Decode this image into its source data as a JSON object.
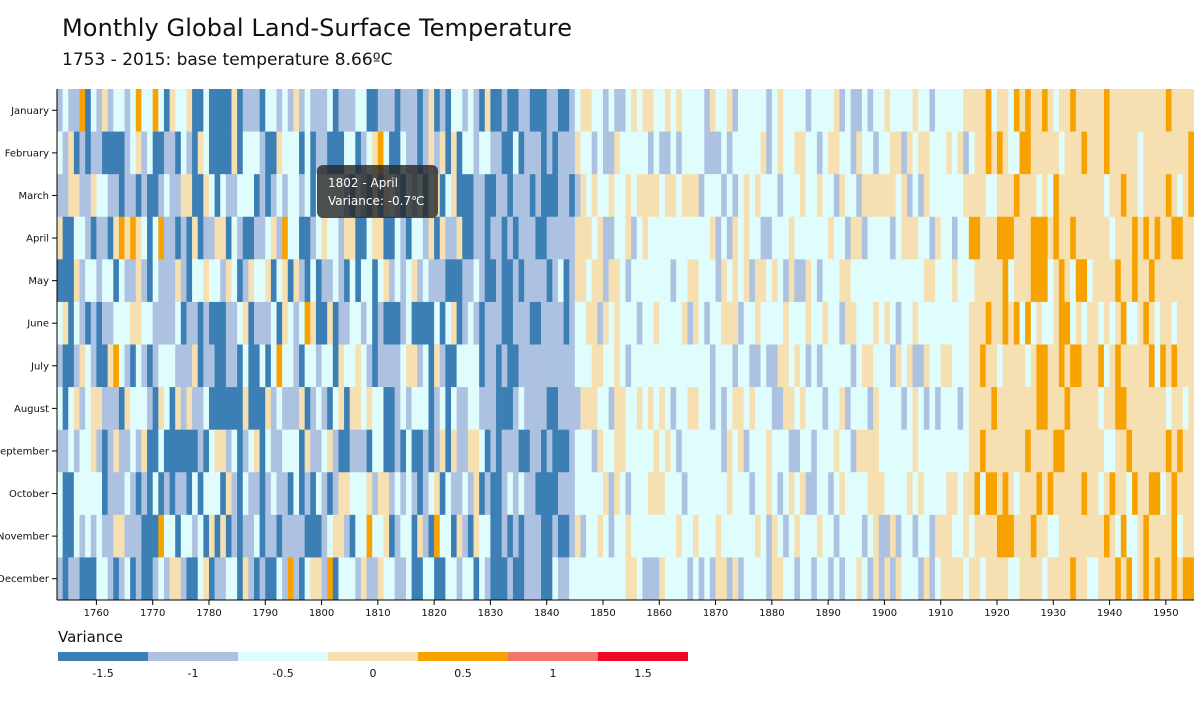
{
  "title": "Monthly Global Land-Surface Temperature",
  "subtitle": "1753 - 2015: base temperature 8.66ºC",
  "tooltip": {
    "line1": "1802 - April",
    "line2": "Variance: -0.7℃"
  },
  "legend": {
    "title": "Variance",
    "ticks": [
      "-1.5",
      "-1",
      "-0.5",
      "0",
      "0.5",
      "1",
      "1.5"
    ]
  },
  "colors": [
    "#3c7fb5",
    "#adc2e1",
    "#e0fdfd",
    "#f6dfb0",
    "#f8a200",
    "#f57469",
    "#ed0a26"
  ],
  "chart_data": {
    "type": "heatmap",
    "title": "Monthly Global Land-Surface Temperature",
    "subtitle": "1753 - 2015: base temperature 8.66ºC",
    "xlabel": "",
    "ylabel": "",
    "x_range": [
      1753,
      1954
    ],
    "x_ticks": [
      1760,
      1770,
      1780,
      1790,
      1800,
      1810,
      1820,
      1830,
      1840,
      1850,
      1860,
      1870,
      1880,
      1890,
      1900,
      1910,
      1920,
      1930,
      1940,
      1950
    ],
    "months": [
      "January",
      "February",
      "March",
      "April",
      "May",
      "June",
      "July",
      "August",
      "September",
      "October",
      "November",
      "December"
    ],
    "color_scale_thresholds": [
      -1.5,
      -1,
      -0.5,
      0,
      0.5,
      1,
      1.5
    ],
    "era_mean_variance": [
      {
        "from": 1753,
        "to": 1830,
        "mean": -0.9
      },
      {
        "from": 1830,
        "to": 1845,
        "mean": -1.2
      },
      {
        "from": 1845,
        "to": 1915,
        "mean": -0.45
      },
      {
        "from": 1915,
        "to": 1954,
        "mean": 0.05
      }
    ],
    "annotation": {
      "year": 1802,
      "month": "April",
      "variance": -0.7
    }
  }
}
